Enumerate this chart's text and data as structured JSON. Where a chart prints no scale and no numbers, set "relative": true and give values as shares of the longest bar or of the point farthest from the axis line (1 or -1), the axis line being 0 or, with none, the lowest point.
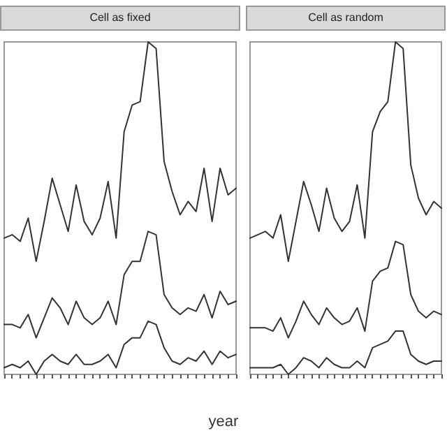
{
  "chart_data": [
    {
      "type": "line",
      "title": "Cell as fixed",
      "xlabel": "year",
      "relative": true,
      "line_style": "solid",
      "categories": [
        null,
        null,
        null,
        null,
        null,
        null,
        null,
        null,
        null,
        null,
        null,
        null,
        null,
        null,
        null,
        null,
        null,
        null,
        null,
        null,
        null,
        null,
        null,
        null,
        null,
        null,
        null,
        null,
        null,
        null
      ],
      "series": [
        {
          "color": "#333333",
          "values": [
            0.41,
            0.42,
            0.4,
            0.47,
            0.34,
            0.46,
            0.59,
            0.51,
            0.43,
            0.57,
            0.46,
            0.42,
            0.47,
            0.58,
            0.41,
            0.73,
            0.81,
            0.82,
            1.0,
            0.98,
            0.64,
            0.55,
            0.48,
            0.52,
            0.49,
            0.62,
            0.46,
            0.62,
            0.54,
            0.56
          ]
        },
        {
          "color": "#333333",
          "values": [
            0.15,
            0.15,
            0.14,
            0.18,
            0.11,
            0.17,
            0.23,
            0.2,
            0.15,
            0.22,
            0.17,
            0.15,
            0.17,
            0.22,
            0.15,
            0.3,
            0.34,
            0.34,
            0.43,
            0.42,
            0.24,
            0.2,
            0.18,
            0.2,
            0.19,
            0.24,
            0.17,
            0.25,
            0.21,
            0.22
          ]
        },
        {
          "color": "#333333",
          "values": [
            0.02,
            0.03,
            0.02,
            0.04,
            0.0,
            0.04,
            0.06,
            0.04,
            0.03,
            0.06,
            0.03,
            0.03,
            0.04,
            0.06,
            0.02,
            0.09,
            0.11,
            0.11,
            0.16,
            0.15,
            0.08,
            0.04,
            0.03,
            0.05,
            0.04,
            0.07,
            0.03,
            0.07,
            0.05,
            0.06
          ]
        }
      ]
    },
    {
      "type": "line",
      "title": "Cell as random",
      "relative": true,
      "line_style": "solid",
      "categories": [
        null,
        null,
        null,
        null,
        null,
        null,
        null,
        null,
        null,
        null,
        null,
        null,
        null,
        null,
        null,
        null,
        null,
        null,
        null,
        null,
        null,
        null,
        null,
        null,
        null,
        null
      ],
      "series": [
        {
          "color": "#333333",
          "values": [
            0.41,
            0.42,
            0.43,
            0.41,
            0.48,
            0.34,
            0.46,
            0.58,
            0.51,
            0.43,
            0.56,
            0.47,
            0.43,
            0.46,
            0.57,
            0.41,
            0.73,
            0.79,
            0.82,
            1.0,
            0.98,
            0.63,
            0.53,
            0.48,
            0.52,
            0.5
          ]
        },
        {
          "color": "#333333",
          "values": [
            0.14,
            0.14,
            0.14,
            0.13,
            0.17,
            0.11,
            0.16,
            0.22,
            0.18,
            0.15,
            0.2,
            0.17,
            0.15,
            0.16,
            0.2,
            0.13,
            0.28,
            0.31,
            0.32,
            0.4,
            0.39,
            0.24,
            0.19,
            0.17,
            0.19,
            0.18
          ]
        },
        {
          "color": "#333333",
          "values": [
            0.02,
            0.02,
            0.02,
            0.02,
            0.03,
            0.0,
            0.02,
            0.05,
            0.04,
            0.02,
            0.05,
            0.03,
            0.02,
            0.02,
            0.04,
            0.02,
            0.08,
            0.09,
            0.1,
            0.13,
            0.13,
            0.06,
            0.04,
            0.03,
            0.04,
            0.04
          ]
        }
      ]
    }
  ]
}
